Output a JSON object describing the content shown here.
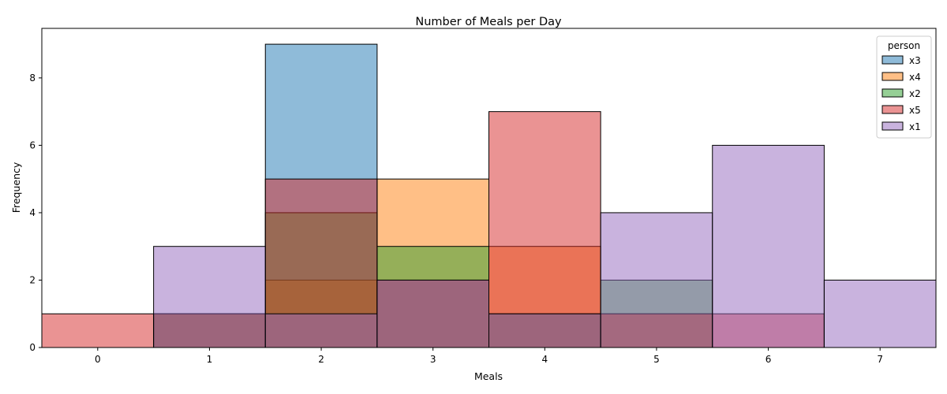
{
  "chart_data": {
    "type": "histogram",
    "title": "Number of Meals per Day",
    "xlabel": "Meals",
    "ylabel": "Frequency",
    "xlim": [
      -0.5,
      7.5
    ],
    "ylim": [
      0,
      9
    ],
    "x_ticks": [
      0,
      1,
      2,
      3,
      4,
      5,
      6,
      7
    ],
    "y_ticks": [
      0,
      2,
      4,
      6,
      8
    ],
    "bin_width": 1,
    "alpha": 0.5,
    "grid": false,
    "legend": {
      "title": "person",
      "position": "top-right"
    },
    "series": [
      {
        "name": "x3",
        "color": "#1f77b4",
        "bins": [
          0,
          1,
          2,
          3,
          4,
          5,
          6,
          7
        ],
        "values": [
          0,
          1,
          9,
          2,
          1,
          0,
          0,
          0
        ]
      },
      {
        "name": "x4",
        "color": "#ff7f0e",
        "bins": [
          0,
          1,
          2,
          3,
          4,
          5,
          6,
          7
        ],
        "values": [
          0,
          1,
          2,
          5,
          3,
          1,
          0,
          0
        ]
      },
      {
        "name": "x2",
        "color": "#2ca02c",
        "bins": [
          0,
          1,
          2,
          3,
          4,
          5,
          6,
          7
        ],
        "values": [
          0,
          1,
          4,
          3,
          1,
          2,
          0,
          0
        ]
      },
      {
        "name": "x5",
        "color": "#d62728",
        "bins": [
          0,
          1,
          2,
          3,
          4,
          5,
          6,
          7
        ],
        "values": [
          1,
          1,
          5,
          2,
          7,
          1,
          1,
          0
        ]
      },
      {
        "name": "x1",
        "color": "#9467bd",
        "bins": [
          0,
          1,
          2,
          3,
          4,
          5,
          6,
          7
        ],
        "values": [
          0,
          3,
          1,
          2,
          1,
          4,
          6,
          2
        ]
      }
    ]
  }
}
